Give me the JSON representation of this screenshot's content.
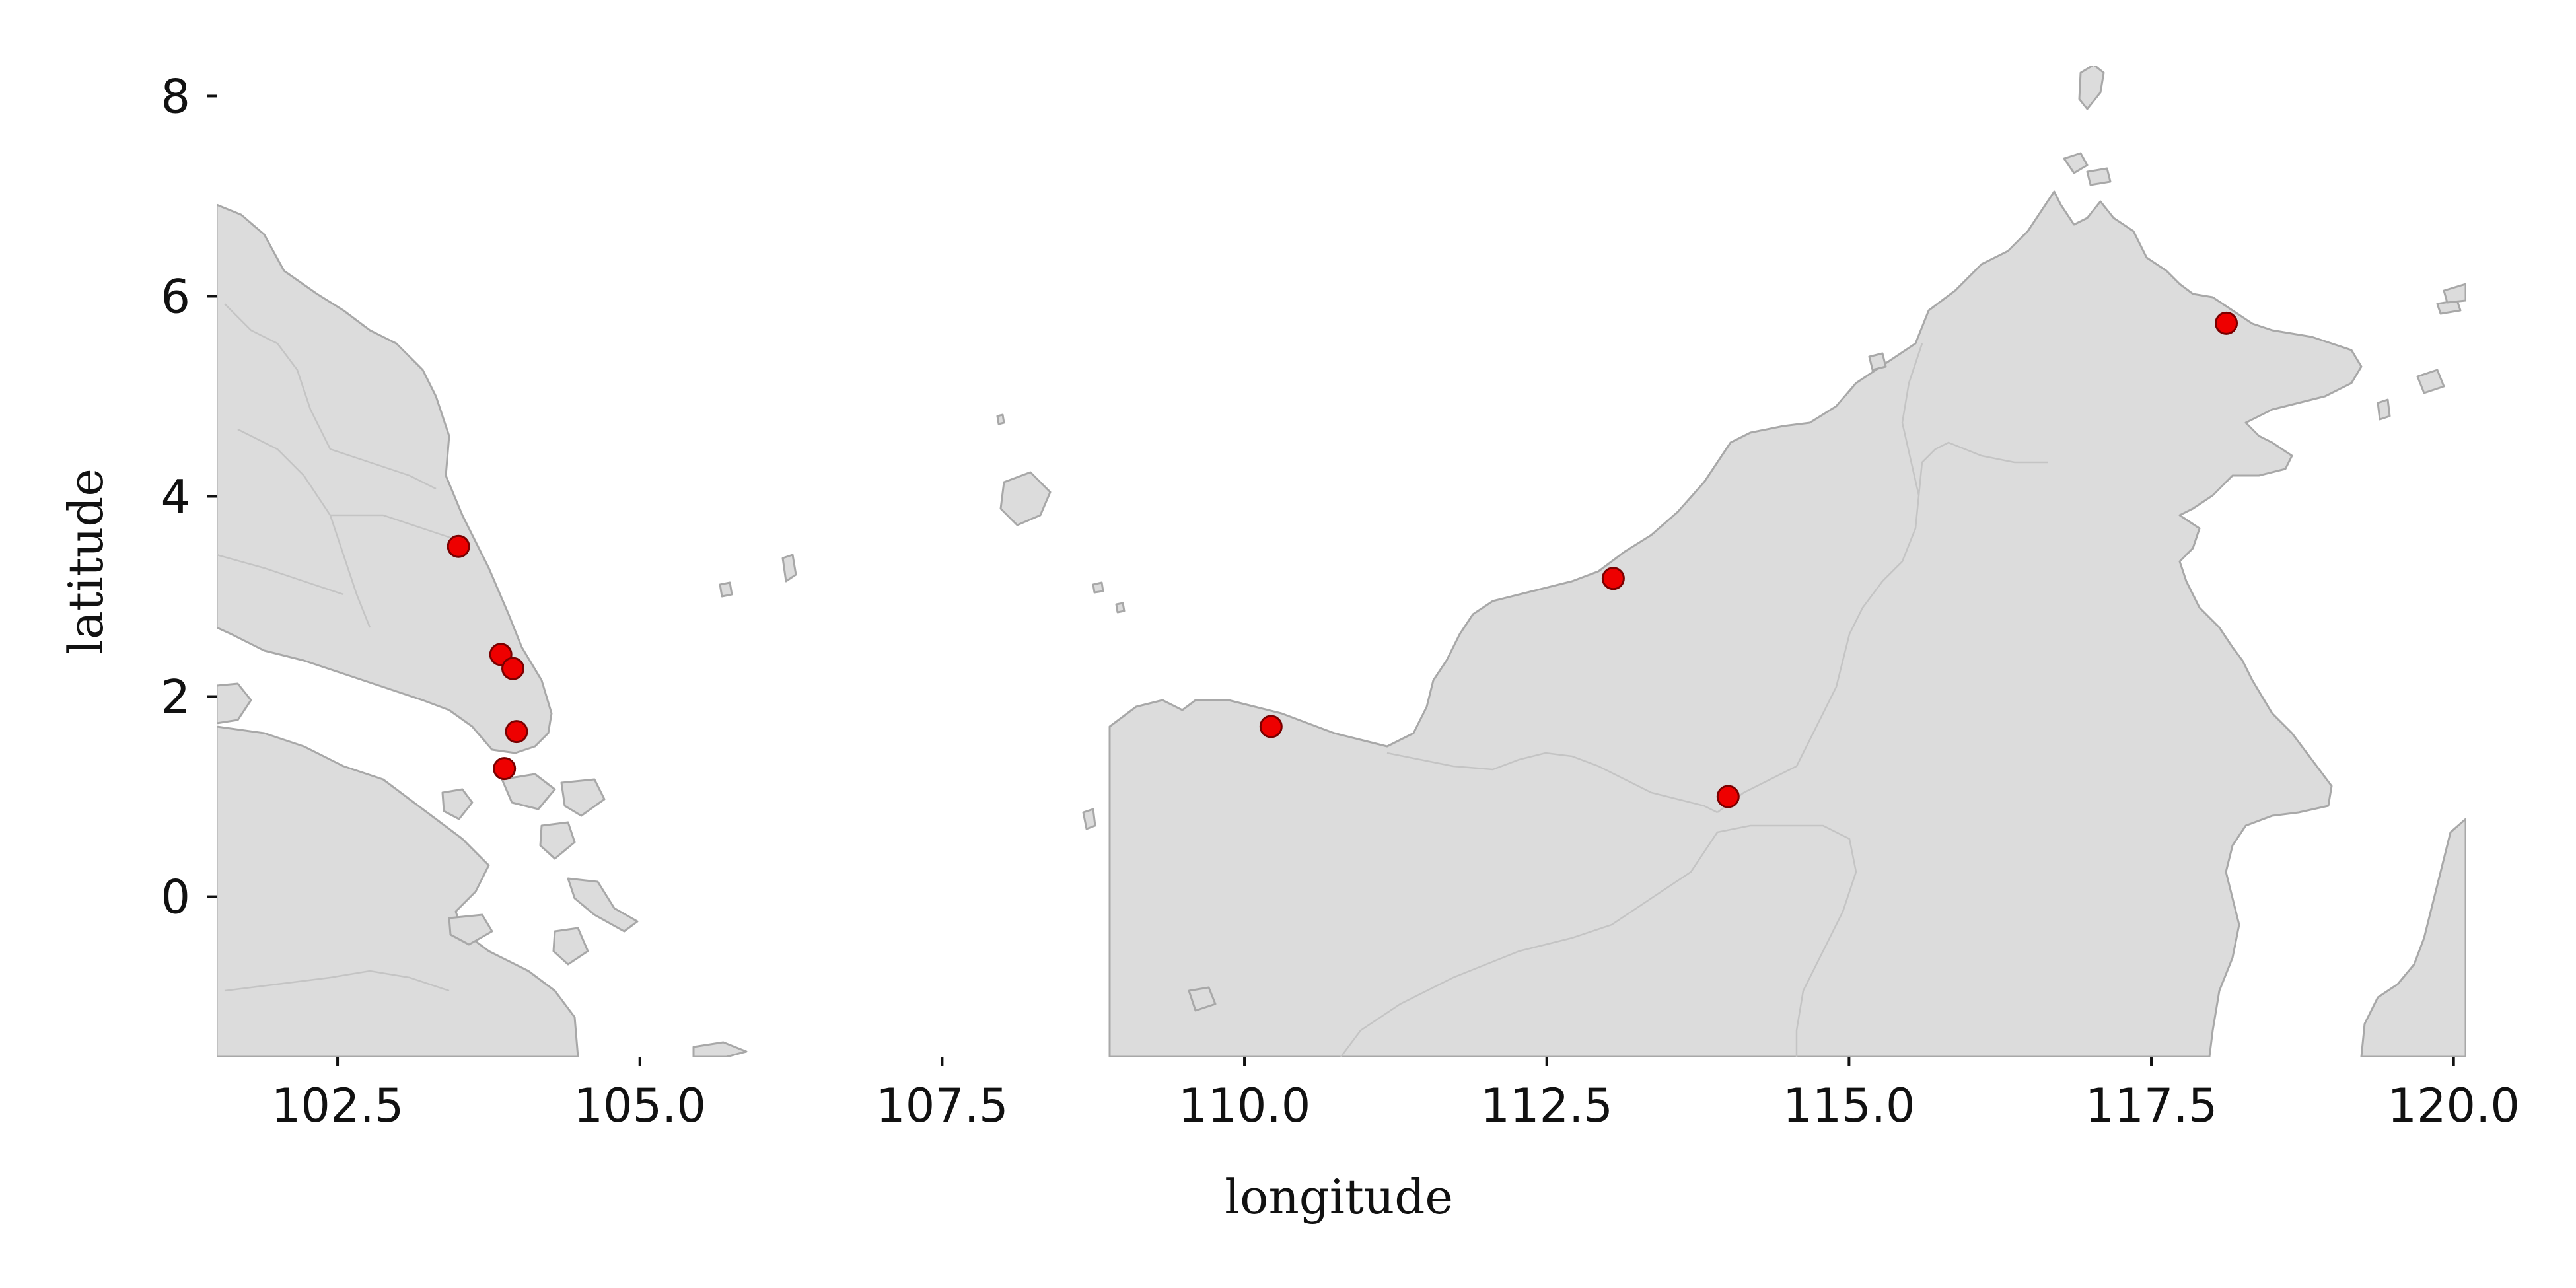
{
  "chart_data": {
    "type": "scatter",
    "title": "",
    "xlabel": "longitude",
    "ylabel": "latitude",
    "xlim": [
      101.5,
      120.1
    ],
    "ylim": [
      -1.6,
      8.3
    ],
    "xticks": [
      "102.5",
      "105.0",
      "107.5",
      "110.0",
      "112.5",
      "115.0",
      "117.5",
      "120.0"
    ],
    "yticks": [
      "0",
      "2",
      "4",
      "6",
      "8"
    ],
    "grid": false,
    "legend": "none",
    "basemap": "Malay Peninsula, Singapore, Riau Islands, Borneo (Malaysia, Brunei, Indonesia)",
    "points": [
      {
        "lon": 103.5,
        "lat": 3.5
      },
      {
        "lon": 103.85,
        "lat": 2.42
      },
      {
        "lon": 103.95,
        "lat": 2.28
      },
      {
        "lon": 103.98,
        "lat": 1.65
      },
      {
        "lon": 103.88,
        "lat": 1.28
      },
      {
        "lon": 110.22,
        "lat": 1.7
      },
      {
        "lon": 113.05,
        "lat": 3.18
      },
      {
        "lon": 114.0,
        "lat": 1.0
      },
      {
        "lon": 118.12,
        "lat": 5.73
      }
    ],
    "colors": {
      "land": "#dcdcdc",
      "coast": "#a8a8a8",
      "border": "#c4c4c4",
      "marker": "#ee0000",
      "marker_edge": "#7a0000"
    }
  }
}
